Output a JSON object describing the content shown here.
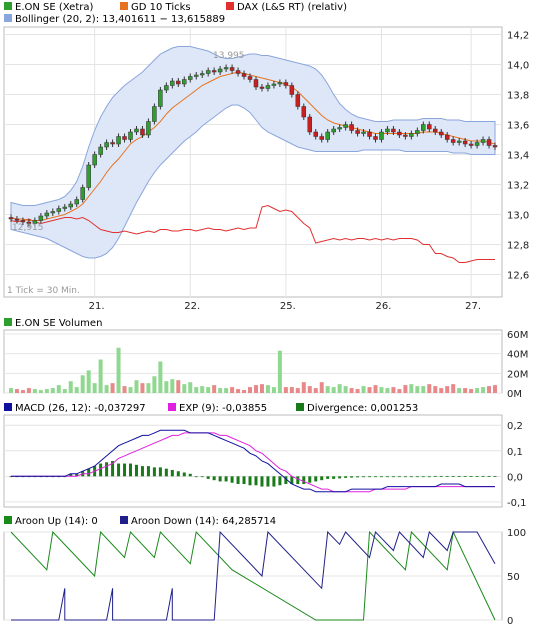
{
  "colors": {
    "price_up": "#2e9e2e",
    "price_down": "#c82020",
    "gd": "#e8731e",
    "dax": "#e03030",
    "bollinger_fill": "#dde7f8",
    "bollinger_line": "#8aa6dc",
    "volume_up": "#90d890",
    "volume_down": "#e88888",
    "macd": "#1010a0",
    "exp": "#e020e0",
    "divergence": "#1a7a1a",
    "aroon_up": "#1a8a1a",
    "aroon_down": "#20208a",
    "grid": "#e4e4e4",
    "frame": "#bbbbbb"
  },
  "chart_data": [
    {
      "id": "price",
      "type": "candlestick",
      "legend": [
        {
          "label": "E.ON SE (Xetra)",
          "color": "#2e9e2e"
        },
        {
          "label": "GD 10 Ticks",
          "color": "#e8731e"
        },
        {
          "label": "DAX (L&S RT) (relativ)",
          "color": "#e03030"
        },
        {
          "label": "Bollinger (20, 2): 13,401611 − 13,615889",
          "color": "#8aa6dc"
        }
      ],
      "annotations": {
        "high": "13,995",
        "low": "12,915",
        "interval": "1 Tick = 30 Min."
      },
      "x_labels": [
        "21.",
        "22.",
        "25.",
        "26.",
        "27."
      ],
      "y_ticks": [
        "14,2",
        "14,0",
        "13,8",
        "13,6",
        "13,4",
        "13,2",
        "13,0",
        "12,8",
        "12,6"
      ],
      "ylim": [
        12.45,
        14.25
      ],
      "close": [
        12.97,
        12.96,
        12.95,
        12.94,
        12.96,
        12.99,
        13.01,
        13.02,
        13.04,
        13.05,
        13.07,
        13.1,
        13.18,
        13.33,
        13.4,
        13.45,
        13.48,
        13.47,
        13.52,
        13.5,
        13.55,
        13.57,
        13.53,
        13.62,
        13.72,
        13.83,
        13.86,
        13.89,
        13.87,
        13.9,
        13.92,
        13.93,
        13.94,
        13.96,
        13.95,
        13.97,
        13.98,
        13.96,
        13.94,
        13.92,
        13.9,
        13.85,
        13.84,
        13.86,
        13.87,
        13.88,
        13.86,
        13.8,
        13.72,
        13.65,
        13.55,
        13.52,
        13.5,
        13.55,
        13.57,
        13.58,
        13.6,
        13.56,
        13.54,
        13.55,
        13.52,
        13.5,
        13.55,
        13.57,
        13.55,
        13.53,
        13.52,
        13.54,
        13.56,
        13.6,
        13.57,
        13.55,
        13.53,
        13.5,
        13.48,
        13.49,
        13.47,
        13.46,
        13.48,
        13.5,
        13.46,
        13.45
      ],
      "gd10": [
        12.98,
        12.97,
        12.97,
        12.96,
        12.96,
        12.96,
        12.97,
        12.98,
        12.99,
        13.0,
        13.02,
        13.04,
        13.07,
        13.12,
        13.17,
        13.22,
        13.28,
        13.33,
        13.37,
        13.42,
        13.47,
        13.5,
        13.52,
        13.55,
        13.58,
        13.62,
        13.67,
        13.71,
        13.74,
        13.77,
        13.8,
        13.83,
        13.86,
        13.88,
        13.9,
        13.92,
        13.93,
        13.94,
        13.95,
        13.94,
        13.93,
        13.92,
        13.91,
        13.9,
        13.89,
        13.88,
        13.87,
        13.85,
        13.82,
        13.78,
        13.74,
        13.7,
        13.66,
        13.63,
        13.61,
        13.6,
        13.59,
        13.58,
        13.57,
        13.56,
        13.55,
        13.54,
        13.54,
        13.54,
        13.54,
        13.54,
        13.54,
        13.54,
        13.54,
        13.55,
        13.55,
        13.55,
        13.54,
        13.53,
        13.52,
        13.51,
        13.5,
        13.49,
        13.49,
        13.49,
        13.48,
        13.47
      ],
      "boll_upper": [
        13.08,
        13.07,
        13.06,
        13.06,
        13.06,
        13.07,
        13.08,
        13.09,
        13.1,
        13.12,
        13.16,
        13.22,
        13.32,
        13.45,
        13.56,
        13.65,
        13.72,
        13.78,
        13.82,
        13.86,
        13.89,
        13.92,
        13.95,
        13.99,
        14.03,
        14.07,
        14.09,
        14.11,
        14.12,
        14.12,
        14.12,
        14.11,
        14.1,
        14.09,
        14.07,
        14.05,
        14.04,
        14.04,
        14.05,
        14.06,
        14.07,
        14.07,
        14.06,
        14.06,
        14.05,
        14.04,
        14.03,
        14.02,
        14.01,
        14.0,
        13.99,
        13.97,
        13.93,
        13.87,
        13.8,
        13.74,
        13.7,
        13.67,
        13.65,
        13.64,
        13.63,
        13.62,
        13.62,
        13.62,
        13.63,
        13.63,
        13.63,
        13.63,
        13.63,
        13.64,
        13.64,
        13.64,
        13.64,
        13.63,
        13.63,
        13.63,
        13.62,
        13.62,
        13.62,
        13.62,
        13.62,
        13.62
      ],
      "boll_lower": [
        12.9,
        12.89,
        12.88,
        12.87,
        12.86,
        12.85,
        12.84,
        12.82,
        12.8,
        12.78,
        12.76,
        12.74,
        12.72,
        12.71,
        12.71,
        12.72,
        12.74,
        12.78,
        12.84,
        12.92,
        13.0,
        13.08,
        13.15,
        13.22,
        13.28,
        13.33,
        13.37,
        13.41,
        13.45,
        13.49,
        13.52,
        13.55,
        13.59,
        13.62,
        13.65,
        13.68,
        13.71,
        13.73,
        13.73,
        13.71,
        13.68,
        13.63,
        13.58,
        13.55,
        13.53,
        13.51,
        13.49,
        13.47,
        13.45,
        13.44,
        13.43,
        13.42,
        13.42,
        13.42,
        13.42,
        13.42,
        13.42,
        13.42,
        13.42,
        13.43,
        13.43,
        13.43,
        13.43,
        13.43,
        13.43,
        13.43,
        13.42,
        13.42,
        13.42,
        13.42,
        13.42,
        13.42,
        13.42,
        13.42,
        13.41,
        13.41,
        13.41,
        13.4,
        13.4,
        13.4,
        13.4,
        13.4
      ],
      "dax_rel": [
        12.96,
        12.95,
        12.96,
        12.97,
        12.95,
        12.94,
        12.95,
        12.96,
        12.97,
        12.98,
        12.98,
        12.97,
        12.98,
        12.96,
        12.93,
        12.9,
        12.89,
        12.88,
        12.88,
        12.89,
        12.88,
        12.87,
        12.88,
        12.89,
        12.88,
        12.9,
        12.9,
        12.89,
        12.89,
        12.9,
        12.9,
        12.89,
        12.9,
        12.91,
        12.9,
        12.9,
        12.89,
        12.9,
        12.91,
        12.9,
        12.91,
        12.91,
        13.05,
        13.06,
        13.04,
        13.02,
        13.03,
        13.02,
        12.98,
        12.94,
        12.91,
        12.81,
        12.82,
        12.83,
        12.84,
        12.83,
        12.84,
        12.83,
        12.84,
        12.84,
        12.83,
        12.84,
        12.83,
        12.84,
        12.83,
        12.84,
        12.84,
        12.84,
        12.83,
        12.8,
        12.8,
        12.74,
        12.74,
        12.72,
        12.71,
        12.68,
        12.68,
        12.69,
        12.7,
        12.7,
        12.7,
        12.7
      ]
    },
    {
      "id": "volume",
      "type": "bar",
      "legend": [
        {
          "label": "E.ON SE Volumen",
          "color": "#2e9e2e"
        }
      ],
      "y_ticks": [
        "60M",
        "40M",
        "20M",
        "0M"
      ],
      "ylim": [
        0,
        64
      ],
      "values": [
        5,
        4,
        3,
        5,
        4,
        3,
        4,
        5,
        8,
        4,
        12,
        6,
        18,
        23,
        10,
        34,
        8,
        10,
        9,
        7,
        6,
        13,
        10,
        10,
        17,
        32,
        12,
        14,
        13,
        9,
        11,
        6,
        7,
        6,
        8,
        5,
        5,
        6,
        4,
        3,
        6,
        8,
        9,
        8,
        6,
        5,
        6,
        6,
        5,
        11,
        7,
        5,
        11,
        7,
        6,
        9,
        7,
        5,
        4,
        7,
        6,
        8,
        6,
        5,
        6,
        4,
        8,
        9,
        7,
        7,
        9,
        7,
        5,
        7,
        9,
        5,
        5,
        4,
        5,
        6,
        7,
        8
      ],
      "highlights": [
        {
          "index": 18,
          "value": 46
        },
        {
          "index": 45,
          "value": 43
        }
      ]
    },
    {
      "id": "macd",
      "type": "line+bar",
      "legend": [
        {
          "label": "MACD (26, 12): -0,037297",
          "color": "#1010a0"
        },
        {
          "label": "EXP (9): -0,03855",
          "color": "#e020e0"
        },
        {
          "label": "Divergence: 0,001253",
          "color": "#1a7a1a"
        }
      ],
      "y_ticks": [
        "0,2",
        "0,1",
        "0,0",
        "-0,1"
      ],
      "ylim": [
        -0.12,
        0.24
      ],
      "macd": [
        0.0,
        0.0,
        0.0,
        0.0,
        0.0,
        0.0,
        0.0,
        0.0,
        0.0,
        0.0,
        0.01,
        0.01,
        0.02,
        0.03,
        0.04,
        0.06,
        0.08,
        0.1,
        0.12,
        0.13,
        0.14,
        0.15,
        0.16,
        0.16,
        0.17,
        0.18,
        0.18,
        0.18,
        0.18,
        0.18,
        0.17,
        0.17,
        0.17,
        0.17,
        0.16,
        0.15,
        0.14,
        0.13,
        0.12,
        0.11,
        0.09,
        0.08,
        0.06,
        0.05,
        0.03,
        0.01,
        -0.01,
        -0.03,
        -0.04,
        -0.05,
        -0.05,
        -0.06,
        -0.06,
        -0.06,
        -0.06,
        -0.06,
        -0.06,
        -0.05,
        -0.05,
        -0.05,
        -0.05,
        -0.05,
        -0.05,
        -0.04,
        -0.04,
        -0.04,
        -0.04,
        -0.04,
        -0.04,
        -0.04,
        -0.04,
        -0.04,
        -0.03,
        -0.03,
        -0.03,
        -0.03,
        -0.04,
        -0.04,
        -0.04,
        -0.04,
        -0.04,
        -0.04
      ],
      "exp": [
        0.0,
        0.0,
        0.0,
        0.0,
        0.0,
        0.0,
        0.0,
        0.0,
        0.0,
        0.0,
        0.0,
        0.0,
        0.01,
        0.01,
        0.02,
        0.03,
        0.04,
        0.05,
        0.07,
        0.08,
        0.09,
        0.1,
        0.11,
        0.12,
        0.13,
        0.14,
        0.15,
        0.16,
        0.16,
        0.17,
        0.17,
        0.17,
        0.17,
        0.17,
        0.17,
        0.16,
        0.16,
        0.15,
        0.14,
        0.13,
        0.12,
        0.1,
        0.09,
        0.07,
        0.05,
        0.03,
        0.02,
        0.0,
        -0.01,
        -0.02,
        -0.03,
        -0.04,
        -0.05,
        -0.05,
        -0.06,
        -0.06,
        -0.06,
        -0.06,
        -0.06,
        -0.06,
        -0.06,
        -0.05,
        -0.05,
        -0.05,
        -0.05,
        -0.05,
        -0.05,
        -0.04,
        -0.04,
        -0.04,
        -0.04,
        -0.04,
        -0.04,
        -0.04,
        -0.04,
        -0.04,
        -0.04,
        -0.04,
        -0.04,
        -0.04,
        -0.04,
        -0.04
      ],
      "divergence": [
        0.0,
        0.0,
        0.0,
        0.0,
        0.0,
        0.0,
        0.0,
        0.0,
        0.0,
        0.0,
        0.01,
        0.01,
        0.02,
        0.03,
        0.04,
        0.05,
        0.055,
        0.06,
        0.05,
        0.05,
        0.05,
        0.045,
        0.04,
        0.04,
        0.035,
        0.035,
        0.03,
        0.025,
        0.02,
        0.015,
        0.01,
        0.0,
        0.0,
        -0.01,
        -0.015,
        -0.02,
        -0.02,
        -0.025,
        -0.03,
        -0.03,
        -0.035,
        -0.035,
        -0.04,
        -0.04,
        -0.04,
        -0.035,
        -0.03,
        -0.03,
        -0.03,
        -0.03,
        -0.025,
        -0.02,
        -0.015,
        -0.01,
        -0.01,
        -0.008,
        -0.006,
        -0.005,
        -0.004,
        -0.003,
        -0.003,
        -0.002,
        -0.002,
        -0.002,
        -0.002,
        -0.001,
        -0.001,
        -0.001,
        0.0,
        0.0,
        0.0,
        0.001,
        0.001,
        0.001,
        0.001,
        0.001,
        0.001,
        0.001,
        0.001,
        0.001,
        0.001,
        0.001
      ]
    },
    {
      "id": "aroon",
      "type": "line",
      "legend": [
        {
          "label": "Aroon Up (14): 0",
          "color": "#1a8a1a"
        },
        {
          "label": "Aroon Down (14): 64,285714",
          "color": "#20208a"
        }
      ],
      "y_ticks": [
        "100",
        "50",
        "0"
      ],
      "ylim": [
        0,
        100
      ],
      "up": [
        [
          0,
          100
        ],
        [
          6,
          57
        ],
        [
          7,
          100
        ],
        [
          14,
          50
        ],
        [
          15,
          100
        ],
        [
          19,
          71
        ],
        [
          20,
          100
        ],
        [
          24,
          71
        ],
        [
          25,
          100
        ],
        [
          30,
          64
        ],
        [
          31,
          100
        ],
        [
          37,
          57
        ],
        [
          51,
          0
        ],
        [
          59,
          0
        ],
        [
          60,
          100
        ],
        [
          66,
          57
        ],
        [
          67,
          100
        ],
        [
          73,
          57
        ],
        [
          74,
          100
        ],
        [
          81,
          0
        ]
      ],
      "down": [
        [
          0,
          0
        ],
        [
          8,
          0
        ],
        [
          9,
          36
        ],
        [
          9,
          0
        ],
        [
          16,
          0
        ],
        [
          17,
          36
        ],
        [
          17,
          0
        ],
        [
          26,
          0
        ],
        [
          27,
          36
        ],
        [
          27,
          0
        ],
        [
          34,
          0
        ],
        [
          35,
          100
        ],
        [
          42,
          50
        ],
        [
          43,
          100
        ],
        [
          52,
          36
        ],
        [
          53,
          100
        ],
        [
          55,
          86
        ],
        [
          56,
          100
        ],
        [
          60,
          71
        ],
        [
          61,
          100
        ],
        [
          64,
          79
        ],
        [
          65,
          100
        ],
        [
          69,
          71
        ],
        [
          70,
          100
        ],
        [
          73,
          79
        ],
        [
          74,
          100
        ],
        [
          78,
          100
        ],
        [
          81,
          64
        ]
      ]
    }
  ]
}
